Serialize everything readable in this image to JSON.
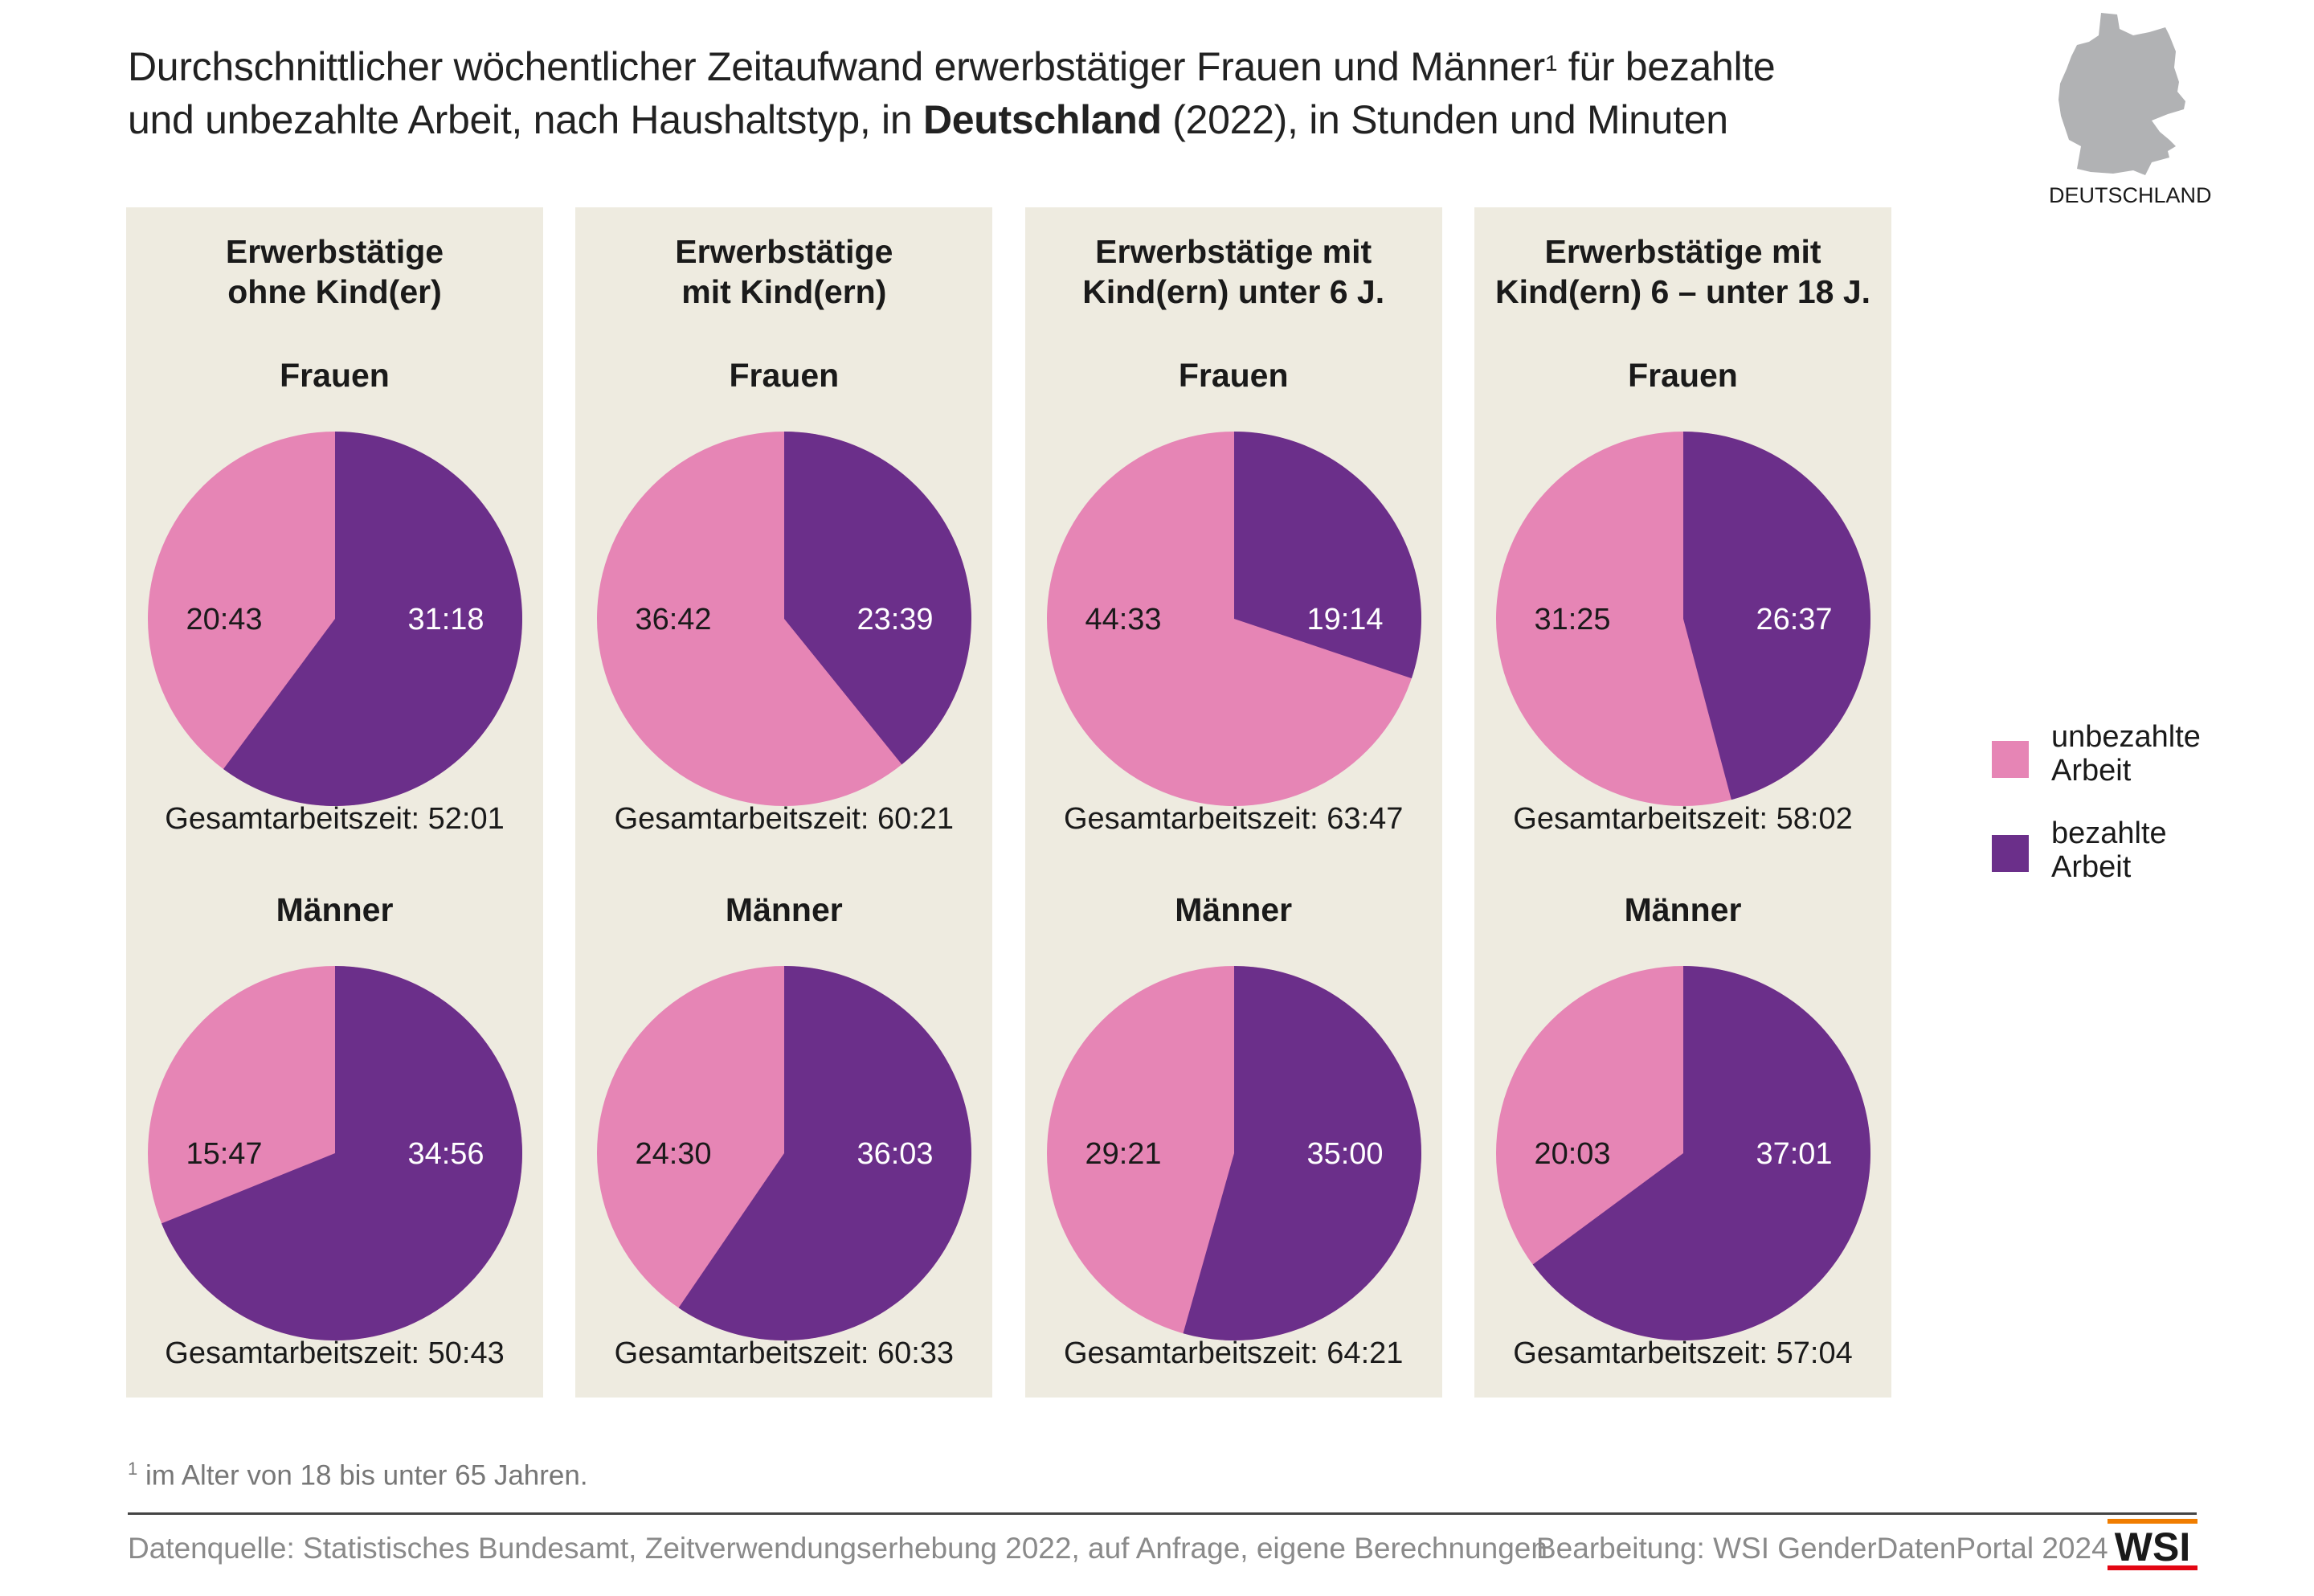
{
  "title": {
    "line1": "Durchschnittlicher wöchentlicher Zeitaufwand erwerbstätiger Frauen und Männer",
    "footnote_mark": "1",
    "line1_end": " für bezahlte",
    "line2_pre": "und unbezahlte Arbeit, nach Haushaltstyp, in ",
    "line2_bold": "Deutschland",
    "line2_post": " (2022), in Stunden und Minuten"
  },
  "map": {
    "label": "DEUTSCHLAND",
    "color": "#b1b2b4"
  },
  "colors": {
    "unpaid": "#e685b5",
    "paid": "#6b2f8a",
    "panel": "#eeebe0"
  },
  "legend": [
    {
      "label": "unbezahlte Arbeit",
      "line1": "unbezahlte",
      "line2": "Arbeit",
      "color": "#e685b5"
    },
    {
      "label": "bezahlte Arbeit",
      "line1": "bezahlte",
      "line2": "Arbeit",
      "color": "#6b2f8a"
    }
  ],
  "chart_data": {
    "type": "pie",
    "unit": "Stunden:Minuten",
    "panels": [
      {
        "title1": "Erwerbstätige",
        "title2": "ohne Kind(er)",
        "frauen": {
          "label": "Frauen",
          "unpaid": "20:43",
          "paid": "31:18",
          "total": "Gesamtarbeitszeit: 52:01"
        },
        "maenner": {
          "label": "Männer",
          "unpaid": "15:47",
          "paid": "34:56",
          "total": "Gesamtarbeitszeit: 50:43"
        }
      },
      {
        "title1": "Erwerbstätige",
        "title2": "mit Kind(ern)",
        "frauen": {
          "label": "Frauen",
          "unpaid": "36:42",
          "paid": "23:39",
          "total": "Gesamtarbeitszeit: 60:21"
        },
        "maenner": {
          "label": "Männer",
          "unpaid": "24:30",
          "paid": "36:03",
          "total": "Gesamtarbeitszeit: 60:33"
        }
      },
      {
        "title1": "Erwerbstätige mit",
        "title2": "Kind(ern) unter 6 J.",
        "frauen": {
          "label": "Frauen",
          "unpaid": "44:33",
          "paid": "19:14",
          "total": "Gesamtarbeitszeit: 63:47"
        },
        "maenner": {
          "label": "Männer",
          "unpaid": "29:21",
          "paid": "35:00",
          "total": "Gesamtarbeitszeit: 64:21"
        }
      },
      {
        "title1": "Erwerbstätige mit",
        "title2": "Kind(ern) 6 – unter 18 J.",
        "frauen": {
          "label": "Frauen",
          "unpaid": "31:25",
          "paid": "26:37",
          "total": "Gesamtarbeitszeit: 58:02"
        },
        "maenner": {
          "label": "Männer",
          "unpaid": "20:03",
          "paid": "37:01",
          "total": "Gesamtarbeitszeit: 57:04"
        }
      }
    ]
  },
  "footnote": {
    "mark": "1",
    "text": " im Alter von 18 bis unter 65 Jahren."
  },
  "source": "Datenquelle: Statistisches Bundesamt, Zeitverwendungserhebung 2022, auf Anfrage, eigene Berechnungen",
  "credit": "Bearbeitung: WSI GenderDatenPortal 2024",
  "logo": {
    "text": "WSI",
    "top_color": "#f07d00",
    "bottom_color": "#e30613"
  }
}
